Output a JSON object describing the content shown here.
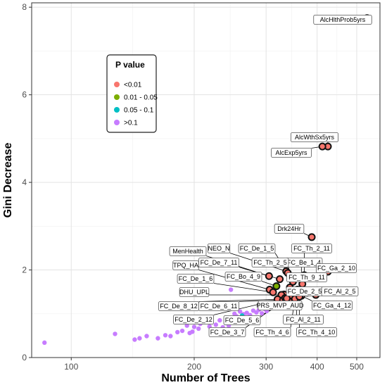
{
  "chart_data": {
    "type": "scatter",
    "xlabel": "Number of Trees",
    "ylabel": "Gini Decrease",
    "x_scale": "log",
    "xlim": [
      80,
      570
    ],
    "ylim": [
      0,
      8.1
    ],
    "x_ticks": [
      100,
      200,
      300,
      400,
      500
    ],
    "y_ticks": [
      0,
      2,
      4,
      6,
      8
    ],
    "grid": true,
    "legend": {
      "title": "P value",
      "position": "left",
      "items": [
        {
          "label": "<0.01",
          "color": "#f8766d"
        },
        {
          "label": "0.01 - 0.05",
          "color": "#7cae00"
        },
        {
          "label": "0.05 - 0.1",
          "color": "#00bfc4"
        },
        {
          "label": ">0.1",
          "color": "#c77cff"
        }
      ]
    },
    "labeled_points": [
      {
        "label": "AlcHlthProb5yrs",
        "x": 530,
        "y": 7.75,
        "p": "<0.01"
      },
      {
        "label": "AlcWthSx5yrs",
        "x": 425,
        "y": 4.82,
        "p": "<0.01"
      },
      {
        "label": "AlcExp5yrs",
        "x": 412,
        "y": 4.82,
        "p": "<0.01"
      },
      {
        "label": "Drk24Hr",
        "x": 388,
        "y": 2.75,
        "p": "<0.01"
      },
      {
        "label": "FC_Th_2_11",
        "x": 372,
        "y": 1.88,
        "p": "<0.01"
      },
      {
        "label": "FC_Be_1_4",
        "x": 366,
        "y": 1.82,
        "p": "<0.01"
      },
      {
        "label": "FC_Ga_2_10",
        "x": 425,
        "y": 1.96,
        "p": "<0.01"
      },
      {
        "label": "FC_Th_9_11",
        "x": 368,
        "y": 1.68,
        "p": "<0.01"
      },
      {
        "label": "FC_Th_2_5",
        "x": 349,
        "y": 1.73,
        "p": "<0.01"
      },
      {
        "label": "NEO_N",
        "x": 336,
        "y": 1.97,
        "p": "<0.01"
      },
      {
        "label": "FC_De_1_5",
        "x": 339,
        "y": 1.93,
        "p": "<0.01"
      },
      {
        "label": "MenHealth",
        "x": 305,
        "y": 1.86,
        "p": "<0.01"
      },
      {
        "label": "FC_De_7_11",
        "x": 324,
        "y": 1.79,
        "p": "<0.01"
      },
      {
        "label": "TPQ_HA",
        "x": 306,
        "y": 1.55,
        "p": "<0.01"
      },
      {
        "label": "FC_Bo_4_9",
        "x": 318,
        "y": 1.63,
        "p": "0.01 - 0.05"
      },
      {
        "label": "FC_De_1_6",
        "x": 312,
        "y": 1.49,
        "p": "<0.01"
      },
      {
        "label": "DHU_UPL",
        "x": 327,
        "y": 1.43,
        "p": "<0.01"
      },
      {
        "label": "FC_De_2_5",
        "x": 378,
        "y": 1.48,
        "p": "<0.01"
      },
      {
        "label": "FC_Al_2_5",
        "x": 397,
        "y": 1.43,
        "p": "<0.01"
      },
      {
        "label": "FC_Ga_4_12",
        "x": 366,
        "y": 1.41,
        "p": "<0.01"
      },
      {
        "label": "PRS_MVP_AUD",
        "x": 343,
        "y": 1.41,
        "p": "<0.01"
      },
      {
        "label": "FC_Al_2_11",
        "x": 356,
        "y": 1.44,
        "p": "<0.01"
      },
      {
        "label": "FC_De_8_12",
        "x": 320,
        "y": 1.33,
        "p": "<0.01"
      },
      {
        "label": "FC_De_6_11",
        "x": 330,
        "y": 1.31,
        "p": "<0.01"
      },
      {
        "label": "FC_De_2_12",
        "x": 334,
        "y": 1.36,
        "p": "<0.01"
      },
      {
        "label": "FC_De_5_6",
        "x": 341,
        "y": 1.29,
        "p": "<0.01"
      },
      {
        "label": "FC_De_3_7",
        "x": 337,
        "y": 1.35,
        "p": "<0.01"
      },
      {
        "label": "FC_Th_4_6",
        "x": 353,
        "y": 1.34,
        "p": "<0.01"
      },
      {
        "label": "FC_Th_4_10",
        "x": 362,
        "y": 1.39,
        "p": "<0.01"
      }
    ],
    "extra_points": [
      {
        "x": 345,
        "y": 1.38,
        "p": "<0.01"
      },
      {
        "x": 350,
        "y": 1.52,
        "p": "<0.01"
      },
      {
        "x": 358,
        "y": 1.55,
        "p": "<0.01"
      },
      {
        "x": 343,
        "y": 1.6,
        "p": "<0.01"
      },
      {
        "x": 332,
        "y": 1.44,
        "p": "<0.01"
      },
      {
        "x": 86,
        "y": 0.34,
        "p": ">0.1"
      },
      {
        "x": 128,
        "y": 0.54,
        "p": ">0.1"
      },
      {
        "x": 143,
        "y": 0.41,
        "p": ">0.1"
      },
      {
        "x": 147,
        "y": 0.44,
        "p": ">0.1"
      },
      {
        "x": 153,
        "y": 0.49,
        "p": ">0.1"
      },
      {
        "x": 163,
        "y": 0.44,
        "p": ">0.1"
      },
      {
        "x": 170,
        "y": 0.51,
        "p": ">0.1"
      },
      {
        "x": 175,
        "y": 0.49,
        "p": ">0.1"
      },
      {
        "x": 182,
        "y": 0.58,
        "p": ">0.1"
      },
      {
        "x": 187,
        "y": 0.61,
        "p": ">0.1"
      },
      {
        "x": 192,
        "y": 0.73,
        "p": ">0.1"
      },
      {
        "x": 195,
        "y": 0.56,
        "p": ">0.1"
      },
      {
        "x": 198,
        "y": 0.59,
        "p": ">0.1"
      },
      {
        "x": 200,
        "y": 0.7,
        "p": ">0.1"
      },
      {
        "x": 205,
        "y": 0.66,
        "p": ">0.1"
      },
      {
        "x": 207,
        "y": 0.77,
        "p": ">0.1"
      },
      {
        "x": 218,
        "y": 0.71,
        "p": ">0.1"
      },
      {
        "x": 226,
        "y": 0.75,
        "p": ">0.1"
      },
      {
        "x": 231,
        "y": 0.85,
        "p": ">0.1"
      },
      {
        "x": 235,
        "y": 0.69,
        "p": ">0.1"
      },
      {
        "x": 239,
        "y": 0.79,
        "p": ">0.1"
      },
      {
        "x": 243,
        "y": 0.73,
        "p": ">0.1"
      },
      {
        "x": 246,
        "y": 1.55,
        "p": ">0.1"
      },
      {
        "x": 251,
        "y": 1.0,
        "p": ">0.1"
      },
      {
        "x": 254,
        "y": 0.94,
        "p": ">0.1"
      },
      {
        "x": 259,
        "y": 1.05,
        "p": ">0.1"
      },
      {
        "x": 264,
        "y": 0.99,
        "p": ">0.1"
      },
      {
        "x": 269,
        "y": 1.02,
        "p": ">0.1"
      },
      {
        "x": 274,
        "y": 0.97,
        "p": ">0.1"
      },
      {
        "x": 279,
        "y": 1.07,
        "p": ">0.1"
      },
      {
        "x": 284,
        "y": 1.03,
        "p": ">0.1"
      },
      {
        "x": 288,
        "y": 1.09,
        "p": ">0.1"
      },
      {
        "x": 293,
        "y": 1.01,
        "p": ">0.1"
      },
      {
        "x": 298,
        "y": 1.11,
        "p": ">0.1"
      },
      {
        "x": 301,
        "y": 1.06,
        "p": ">0.1"
      },
      {
        "x": 305,
        "y": 1.14,
        "p": ">0.1"
      },
      {
        "x": 262,
        "y": 0.96,
        "p": "0.05 - 0.1"
      }
    ]
  }
}
